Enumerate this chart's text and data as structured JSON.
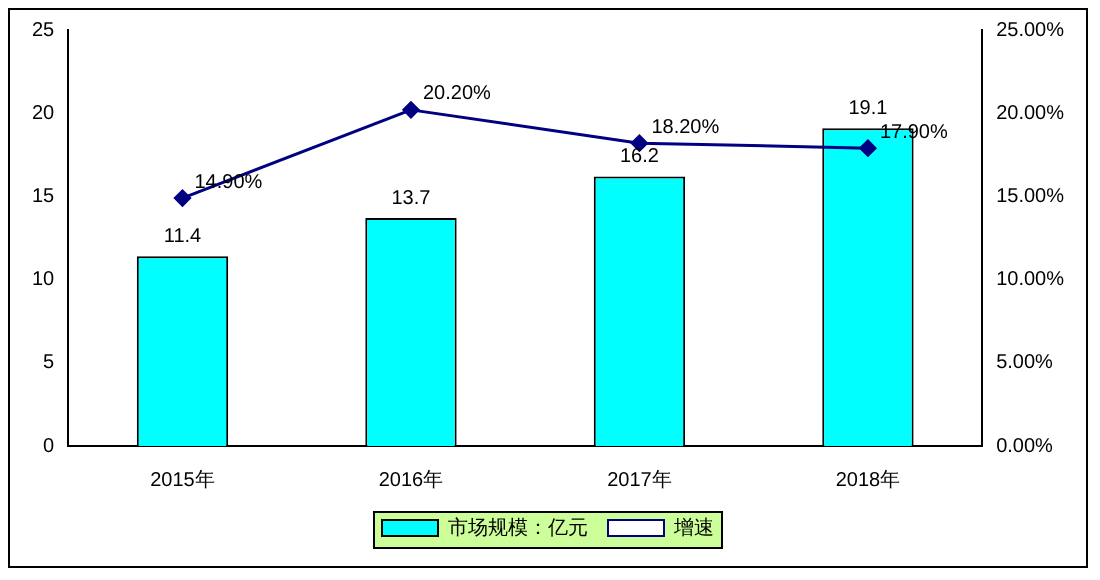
{
  "chart_data": {
    "type": "bar",
    "categories": [
      "2015年",
      "2016年",
      "2017年",
      "2018年"
    ],
    "series": [
      {
        "name": "市场规模：亿元",
        "color": "#00ffff",
        "values": [
          11.4,
          13.7,
          16.2,
          19.1
        ],
        "value_labels": [
          "11.4",
          "13.7",
          "16.2",
          "19.1"
        ]
      },
      {
        "type": "line",
        "name": "增速",
        "color": "#000080",
        "axis": "y2",
        "values": [
          14.9,
          20.2,
          18.2,
          17.9
        ],
        "value_labels": [
          "14.90%",
          "20.20%",
          "18.20%",
          "17.90%"
        ]
      }
    ],
    "ylim": [
      0,
      25
    ],
    "yticks": [
      0,
      5,
      10,
      15,
      20,
      25
    ],
    "y2lim": [
      0,
      25
    ],
    "y2ticks": [
      {
        "value": 0,
        "label": "0.00%"
      },
      {
        "value": 5,
        "label": "5.00%"
      },
      {
        "value": 10,
        "label": "10.00%"
      },
      {
        "value": 15,
        "label": "15.00%"
      },
      {
        "value": 20,
        "label": "20.00%"
      },
      {
        "value": 25,
        "label": "25.00%"
      }
    ],
    "grid": false,
    "legend": "bottom",
    "marker": "diamond",
    "line_style": "solid"
  }
}
